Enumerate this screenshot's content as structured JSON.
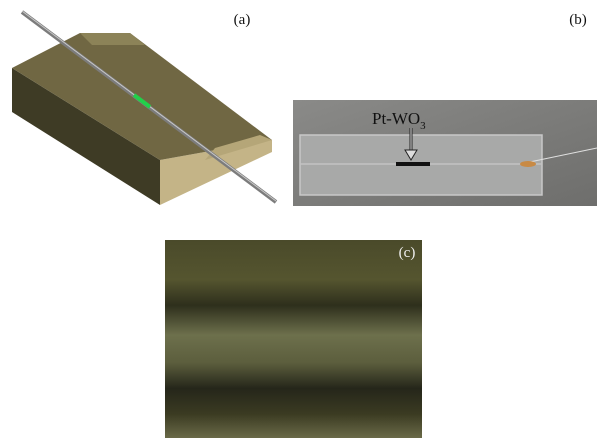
{
  "panels": [
    {
      "label": "(a)"
    },
    {
      "label": "(b)",
      "annotation": {
        "text": "Pt-WO",
        "subscript": "3"
      }
    },
    {
      "label": "(c)"
    }
  ]
}
